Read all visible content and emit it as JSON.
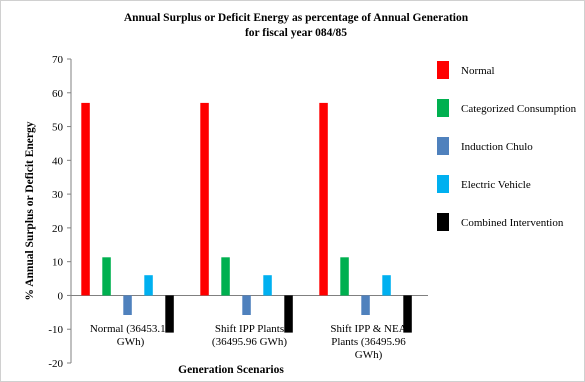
{
  "chart_data": {
    "type": "bar",
    "title_lines": [
      "Annual Surplus  or Deficit Energy as percentage of Annual Generation",
      "for fiscal year 084/85"
    ],
    "xlabel": "Generation Scenarios",
    "ylabel": "% Annual Surplus  or Deficit Energy",
    "ylim": [
      -20,
      70
    ],
    "yticks": [
      -20,
      -10,
      0,
      10,
      20,
      30,
      40,
      50,
      60,
      70
    ],
    "grid": false,
    "legend_position": "right",
    "categories": [
      [
        "Normal  (36453.15",
        "GWh)"
      ],
      [
        "Shift IPP Plants",
        "(36495.96 GWh)"
      ],
      [
        "Shift IPP & NEA",
        "Plants (36495.96",
        "GWh)"
      ]
    ],
    "series": [
      {
        "name": "Normal",
        "color": "#ff0000",
        "values": [
          57,
          57,
          57
        ]
      },
      {
        "name": "Categorized Consumption",
        "color": "#00b050",
        "values": [
          11.3,
          11.3,
          11.3
        ]
      },
      {
        "name": "Induction Chulo",
        "color": "#4f81bd",
        "values": [
          -5.8,
          -5.8,
          -5.8
        ]
      },
      {
        "name": "Electric Vehicle",
        "color": "#00b0f0",
        "values": [
          6,
          6,
          6
        ]
      },
      {
        "name": "Combined Intervention",
        "color": "#000000",
        "values": [
          -11,
          -11,
          -11
        ]
      }
    ]
  }
}
